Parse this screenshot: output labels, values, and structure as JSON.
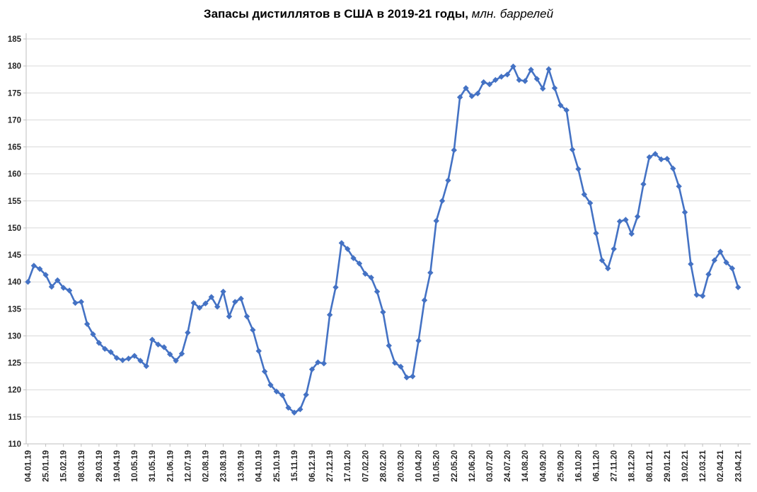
{
  "chart_data": {
    "type": "line",
    "title": {
      "main": "Запасы дистиллятов в США в 2019-21 годы,",
      "italic": " млн. баррелей"
    },
    "legend_position": "none",
    "grid": true,
    "y_axis": {
      "min": 110,
      "max": 185,
      "step": 5,
      "tick_labels": [
        "110",
        "115",
        "120",
        "125",
        "130",
        "135",
        "140",
        "145",
        "150",
        "155",
        "160",
        "165",
        "170",
        "175",
        "180",
        "185"
      ]
    },
    "x_axis": {
      "label_every": 3,
      "tick_labels": [
        "04.01.19",
        "25.01.19",
        "15.02.19",
        "08.03.19",
        "29.03.19",
        "19.04.19",
        "10.05.19",
        "31.05.19",
        "21.06.19",
        "12.07.19",
        "02.08.19",
        "23.08.19",
        "13.09.19",
        "04.10.19",
        "25.10.19",
        "15.11.19",
        "06.12.19",
        "27.12.19",
        "17.01.20",
        "07.02.20",
        "28.02.20",
        "20.03.20",
        "10.04.20",
        "01.05.20",
        "22.05.20",
        "12.06.20",
        "03.07.20",
        "24.07.20",
        "14.08.20",
        "04.09.20",
        "25.09.20",
        "16.10.20",
        "06.11.20",
        "27.11.20",
        "18.12.20",
        "08.01.21",
        "29.01.21",
        "19.02.21",
        "12.03.21",
        "02.04.21",
        "23.04.21"
      ]
    },
    "series": [
      {
        "name": "Запасы дистиллятов в США, млн. баррелей",
        "color": "#4472C4",
        "marker": "diamond",
        "values": [
          140.0,
          143.0,
          142.4,
          141.3,
          139.1,
          140.3,
          138.9,
          138.4,
          136.1,
          136.3,
          132.2,
          130.3,
          128.7,
          127.6,
          127.0,
          125.9,
          125.5,
          125.8,
          126.3,
          125.4,
          124.4,
          129.3,
          128.4,
          127.9,
          126.6,
          125.4,
          126.7,
          130.6,
          136.1,
          135.2,
          136.0,
          137.2,
          135.4,
          138.2,
          133.6,
          136.3,
          136.9,
          133.6,
          131.1,
          127.2,
          123.4,
          120.9,
          119.7,
          119.0,
          116.7,
          115.8,
          116.4,
          119.1,
          123.8,
          125.1,
          124.9,
          133.9,
          139.0,
          147.2,
          146.1,
          144.4,
          143.4,
          141.5,
          140.8,
          138.2,
          134.4,
          128.2,
          125.0,
          124.3,
          122.3,
          122.5,
          129.1,
          136.6,
          141.7,
          151.3,
          155.0,
          158.8,
          164.4,
          174.2,
          175.9,
          174.4,
          174.9,
          177.0,
          176.6,
          177.4,
          178.0,
          178.4,
          179.9,
          177.4,
          177.2,
          179.3,
          177.6,
          175.8,
          179.4,
          175.9,
          172.7,
          171.8,
          164.5,
          160.9,
          156.2,
          154.6,
          149.0,
          144.0,
          142.5,
          146.1,
          151.2,
          151.5,
          148.9,
          152.1,
          158.1,
          163.1,
          163.7,
          162.7,
          162.8,
          161.0,
          157.7,
          152.9,
          143.3,
          137.6,
          137.4,
          141.4,
          144.0,
          145.6,
          143.6,
          142.5,
          139.0
        ]
      }
    ],
    "colors": {
      "line": "#4472C4",
      "grid": "#D9D9D9",
      "axis": "#BFBFBF",
      "labels": "#262626"
    }
  }
}
